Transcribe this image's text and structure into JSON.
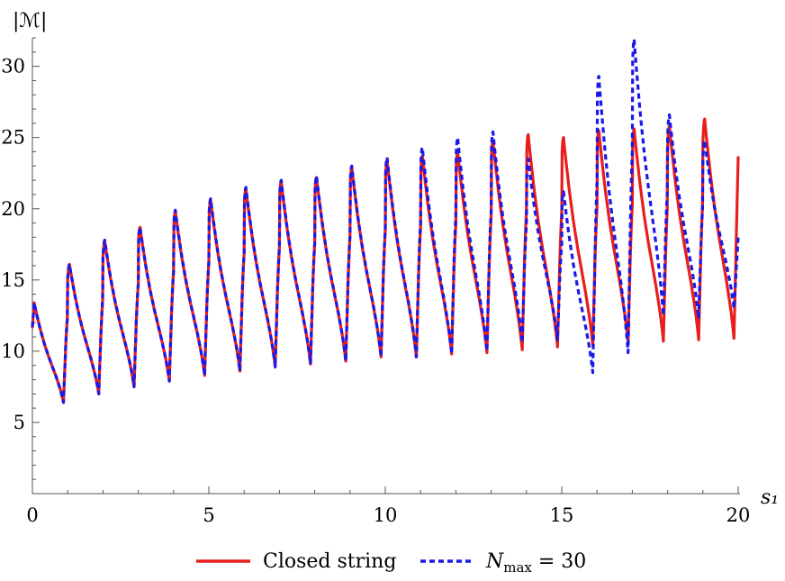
{
  "chart_data": {
    "type": "line",
    "title": "",
    "xlabel": "s₁",
    "ylabel": "|ℳ|",
    "xlim": [
      0,
      20
    ],
    "ylim": [
      0,
      32
    ],
    "x_ticks": [
      0,
      5,
      10,
      15,
      20
    ],
    "x_tick_labels": [
      "0",
      "5",
      "10",
      "15",
      "20"
    ],
    "y_ticks": [
      5,
      10,
      15,
      20,
      25,
      30
    ],
    "y_tick_labels": [
      "5",
      "10",
      "15",
      "20",
      "25",
      "30"
    ],
    "grid": false,
    "legend_position": "bottom",
    "series": [
      {
        "name": "Closed string",
        "color": "#e81d1d",
        "style": "solid",
        "peaks": [
          13.4,
          16.1,
          17.7,
          18.7,
          19.8,
          20.6,
          21.4,
          21.9,
          22.2,
          22.9,
          23.4,
          23.7,
          24.0,
          24.8,
          25.2,
          25.0,
          25.5,
          25.6,
          25.8,
          26.3,
          23.6
        ],
        "troughs": [
          6.4,
          7.0,
          7.5,
          7.9,
          8.3,
          8.6,
          8.9,
          9.1,
          9.3,
          9.6,
          9.6,
          9.8,
          9.9,
          10.1,
          10.3,
          10.4,
          10.6,
          10.7,
          10.8,
          10.9
        ],
        "start": 11.7
      },
      {
        "name": "N_max = 30",
        "color": "#1a1ae8",
        "style": "dashed",
        "peaks": [
          13.4,
          16.1,
          17.8,
          18.7,
          19.9,
          20.7,
          21.5,
          22.0,
          22.3,
          23.0,
          23.6,
          24.3,
          25.0,
          25.4,
          23.5,
          21.2,
          29.3,
          31.9,
          26.6,
          24.8,
          18.0
        ],
        "troughs": [
          6.4,
          7.0,
          7.5,
          7.9,
          8.3,
          8.6,
          8.9,
          9.1,
          9.3,
          9.6,
          9.6,
          9.8,
          10.0,
          10.6,
          10.8,
          8.5,
          9.9,
          12.5,
          12.3,
          13.0
        ],
        "start": 11.7
      }
    ]
  },
  "legend": {
    "closed_label": "Closed string",
    "nmax_base": "N",
    "nmax_sub": "max",
    "nmax_rest": " = 30"
  }
}
